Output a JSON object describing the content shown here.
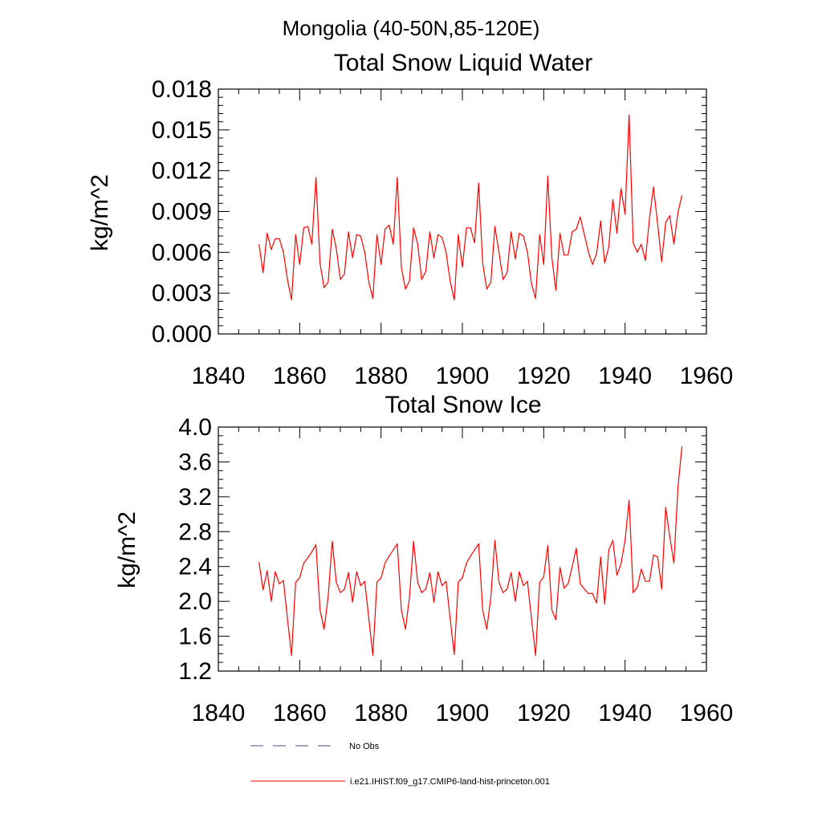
{
  "page": {
    "title": "Mongolia (40-50N,85-120E)"
  },
  "chart_data": [
    {
      "type": "line",
      "title": "Total Snow Liquid Water",
      "xlabel": "",
      "ylabel": "kg/m^2",
      "xlim": [
        1840,
        1960
      ],
      "ylim": [
        0.0,
        0.018
      ],
      "xticks": [
        "1840",
        "1860",
        "1880",
        "1900",
        "1920",
        "1940",
        "1960"
      ],
      "yticks": [
        "0.000",
        "0.003",
        "0.006",
        "0.009",
        "0.012",
        "0.015",
        "0.018"
      ],
      "color": "#ff0000",
      "series": [
        {
          "name": "i.e21.IHIST.f09_g17.CMIP6-land-hist-princeton.001",
          "x": [
            1850,
            1851,
            1852,
            1853,
            1854,
            1855,
            1856,
            1857,
            1858,
            1859,
            1860,
            1861,
            1862,
            1863,
            1864,
            1865,
            1866,
            1867,
            1868,
            1869,
            1870,
            1871,
            1872,
            1873,
            1874,
            1875,
            1876,
            1877,
            1878,
            1879,
            1880,
            1881,
            1882,
            1883,
            1884,
            1885,
            1886,
            1887,
            1888,
            1889,
            1890,
            1891,
            1892,
            1893,
            1894,
            1895,
            1896,
            1897,
            1898,
            1899,
            1900,
            1901,
            1902,
            1903,
            1904,
            1905,
            1906,
            1907,
            1908,
            1909,
            1910,
            1911,
            1912,
            1913,
            1914,
            1915,
            1916,
            1917,
            1918,
            1919,
            1920,
            1921,
            1922,
            1923,
            1924,
            1925,
            1926,
            1927,
            1928,
            1929,
            1930,
            1931,
            1932,
            1933,
            1934,
            1935,
            1936,
            1937,
            1938,
            1939,
            1940,
            1941,
            1942,
            1943,
            1944,
            1945,
            1946,
            1947,
            1948,
            1949,
            1950,
            1951,
            1952,
            1953,
            1954
          ],
          "y": [
            0.0066,
            0.0045,
            0.0074,
            0.0062,
            0.007,
            0.007,
            0.006,
            0.004,
            0.0025,
            0.0073,
            0.0051,
            0.0078,
            0.0079,
            0.0066,
            0.0115,
            0.0052,
            0.0034,
            0.0038,
            0.0077,
            0.0063,
            0.004,
            0.0044,
            0.0075,
            0.0056,
            0.0073,
            0.0072,
            0.006,
            0.0038,
            0.0026,
            0.0073,
            0.0051,
            0.0077,
            0.008,
            0.0066,
            0.0115,
            0.0049,
            0.0033,
            0.0039,
            0.0078,
            0.0066,
            0.004,
            0.0046,
            0.0075,
            0.0056,
            0.0073,
            0.0071,
            0.006,
            0.0039,
            0.0025,
            0.0073,
            0.0049,
            0.0078,
            0.0078,
            0.0067,
            0.0111,
            0.0052,
            0.0033,
            0.0038,
            0.0079,
            0.006,
            0.004,
            0.0045,
            0.0075,
            0.0055,
            0.0074,
            0.0072,
            0.006,
            0.0037,
            0.0026,
            0.0073,
            0.0051,
            0.0116,
            0.0056,
            0.0032,
            0.0074,
            0.0058,
            0.0058,
            0.0075,
            0.0077,
            0.0086,
            0.0073,
            0.006,
            0.0051,
            0.0059,
            0.0083,
            0.0052,
            0.0064,
            0.0099,
            0.0074,
            0.0107,
            0.0088,
            0.0161,
            0.0067,
            0.006,
            0.0066,
            0.0054,
            0.0085,
            0.0108,
            0.0081,
            0.0053,
            0.0082,
            0.0087,
            0.0066,
            0.0089,
            0.0102
          ]
        }
      ]
    },
    {
      "type": "line",
      "title": "Total Snow Ice",
      "xlabel": "",
      "ylabel": "kg/m^2",
      "xlim": [
        1840,
        1960
      ],
      "ylim": [
        1.2,
        4.0
      ],
      "xticks": [
        "1840",
        "1860",
        "1880",
        "1900",
        "1920",
        "1940",
        "1960"
      ],
      "yticks": [
        "1.2",
        "1.6",
        "2.0",
        "2.4",
        "2.8",
        "3.2",
        "3.6",
        "4.0"
      ],
      "color": "#ff0000",
      "series": [
        {
          "name": "i.e21.IHIST.f09_g17.CMIP6-land-hist-princeton.001",
          "x": [
            1850,
            1851,
            1852,
            1853,
            1854,
            1855,
            1856,
            1857,
            1858,
            1859,
            1860,
            1861,
            1862,
            1863,
            1864,
            1865,
            1866,
            1867,
            1868,
            1869,
            1870,
            1871,
            1872,
            1873,
            1874,
            1875,
            1876,
            1877,
            1878,
            1879,
            1880,
            1881,
            1882,
            1883,
            1884,
            1885,
            1886,
            1887,
            1888,
            1889,
            1890,
            1891,
            1892,
            1893,
            1894,
            1895,
            1896,
            1897,
            1898,
            1899,
            1900,
            1901,
            1902,
            1903,
            1904,
            1905,
            1906,
            1907,
            1908,
            1909,
            1910,
            1911,
            1912,
            1913,
            1914,
            1915,
            1916,
            1917,
            1918,
            1919,
            1920,
            1921,
            1922,
            1923,
            1924,
            1925,
            1926,
            1927,
            1928,
            1929,
            1930,
            1931,
            1932,
            1933,
            1934,
            1935,
            1936,
            1937,
            1938,
            1939,
            1940,
            1941,
            1942,
            1943,
            1944,
            1945,
            1946,
            1947,
            1948,
            1949,
            1950,
            1951,
            1952,
            1953,
            1954
          ],
          "y": [
            2.45,
            2.13,
            2.35,
            2.0,
            2.34,
            2.2,
            2.24,
            1.8,
            1.38,
            2.22,
            2.27,
            2.44,
            2.5,
            2.57,
            2.65,
            1.9,
            1.68,
            2.05,
            2.69,
            2.22,
            2.1,
            2.14,
            2.33,
            1.99,
            2.34,
            2.18,
            2.23,
            1.8,
            1.38,
            2.22,
            2.27,
            2.44,
            2.52,
            2.59,
            2.66,
            1.9,
            1.68,
            2.05,
            2.69,
            2.22,
            2.1,
            2.14,
            2.33,
            1.99,
            2.34,
            2.18,
            2.23,
            1.8,
            1.39,
            2.22,
            2.27,
            2.44,
            2.52,
            2.59,
            2.66,
            1.9,
            1.68,
            2.05,
            2.7,
            2.22,
            2.1,
            2.14,
            2.33,
            2.0,
            2.34,
            2.18,
            2.23,
            1.8,
            1.38,
            2.22,
            2.28,
            2.64,
            1.9,
            1.79,
            2.39,
            2.15,
            2.2,
            2.4,
            2.61,
            2.2,
            2.14,
            2.09,
            2.09,
            1.98,
            2.51,
            1.97,
            2.59,
            2.7,
            2.3,
            2.43,
            2.7,
            3.16,
            2.1,
            2.16,
            2.37,
            2.23,
            2.23,
            2.53,
            2.51,
            2.14,
            3.08,
            2.74,
            2.44,
            3.3,
            3.78
          ]
        }
      ]
    }
  ],
  "legend": {
    "placement": "bottom",
    "items": [
      {
        "label": "No Obs",
        "color": "#4a4a7a",
        "dash": "dashed"
      },
      {
        "label": "i.e21.IHIST.f09_g17.CMIP6-land-hist-princeton.001",
        "color": "#ff0000",
        "dash": "solid"
      }
    ]
  }
}
